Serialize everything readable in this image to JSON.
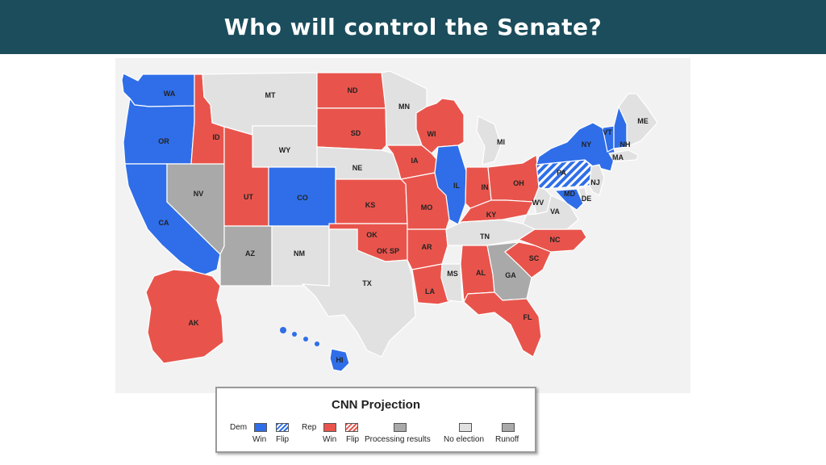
{
  "title": "Who will control the Senate?",
  "colors": {
    "dem": "#2f6ee8",
    "rep": "#e8544c",
    "processing": "#a9a9a9",
    "no_election": "#e1e1e1",
    "runoff": "#a9a9a9",
    "title_bg": "#1b4d5c",
    "panel_bg": "#f2f2f2"
  },
  "states": [
    {
      "code": "WA",
      "status": "dem"
    },
    {
      "code": "OR",
      "status": "dem"
    },
    {
      "code": "CA",
      "status": "dem"
    },
    {
      "code": "NV",
      "status": "processing"
    },
    {
      "code": "ID",
      "status": "rep"
    },
    {
      "code": "MT",
      "status": "none"
    },
    {
      "code": "WY",
      "status": "none"
    },
    {
      "code": "UT",
      "status": "rep"
    },
    {
      "code": "CO",
      "status": "dem"
    },
    {
      "code": "AZ",
      "status": "processing"
    },
    {
      "code": "NM",
      "status": "none"
    },
    {
      "code": "ND",
      "status": "rep"
    },
    {
      "code": "SD",
      "status": "rep"
    },
    {
      "code": "NE",
      "status": "none"
    },
    {
      "code": "KS",
      "status": "rep"
    },
    {
      "code": "OK",
      "status": "rep"
    },
    {
      "code": "OK SP",
      "status": "rep"
    },
    {
      "code": "TX",
      "status": "none"
    },
    {
      "code": "MN",
      "status": "none"
    },
    {
      "code": "IA",
      "status": "rep"
    },
    {
      "code": "MO",
      "status": "rep"
    },
    {
      "code": "AR",
      "status": "rep"
    },
    {
      "code": "LA",
      "status": "rep"
    },
    {
      "code": "WI",
      "status": "rep"
    },
    {
      "code": "IL",
      "status": "dem"
    },
    {
      "code": "MI",
      "status": "none"
    },
    {
      "code": "IN",
      "status": "rep"
    },
    {
      "code": "OH",
      "status": "rep"
    },
    {
      "code": "KY",
      "status": "rep"
    },
    {
      "code": "TN",
      "status": "none"
    },
    {
      "code": "MS",
      "status": "none"
    },
    {
      "code": "AL",
      "status": "rep"
    },
    {
      "code": "GA",
      "status": "runoff"
    },
    {
      "code": "FL",
      "status": "rep"
    },
    {
      "code": "SC",
      "status": "rep"
    },
    {
      "code": "NC",
      "status": "rep"
    },
    {
      "code": "VA",
      "status": "none"
    },
    {
      "code": "WV",
      "status": "none"
    },
    {
      "code": "PA",
      "status": "dem-flip"
    },
    {
      "code": "NY",
      "status": "dem"
    },
    {
      "code": "VT",
      "status": "dem"
    },
    {
      "code": "NH",
      "status": "dem"
    },
    {
      "code": "ME",
      "status": "none"
    },
    {
      "code": "MA",
      "status": "none"
    },
    {
      "code": "NJ",
      "status": "none"
    },
    {
      "code": "MD",
      "status": "dem"
    },
    {
      "code": "DE",
      "status": "none"
    },
    {
      "code": "AK",
      "status": "rep"
    },
    {
      "code": "HI",
      "status": "dem"
    }
  ],
  "legend": {
    "title": "CNN Projection",
    "dem_label": "Dem",
    "rep_label": "Rep",
    "win": "Win",
    "flip": "Flip",
    "processing": "Processing results",
    "no_election": "No election",
    "runoff": "Runoff"
  }
}
